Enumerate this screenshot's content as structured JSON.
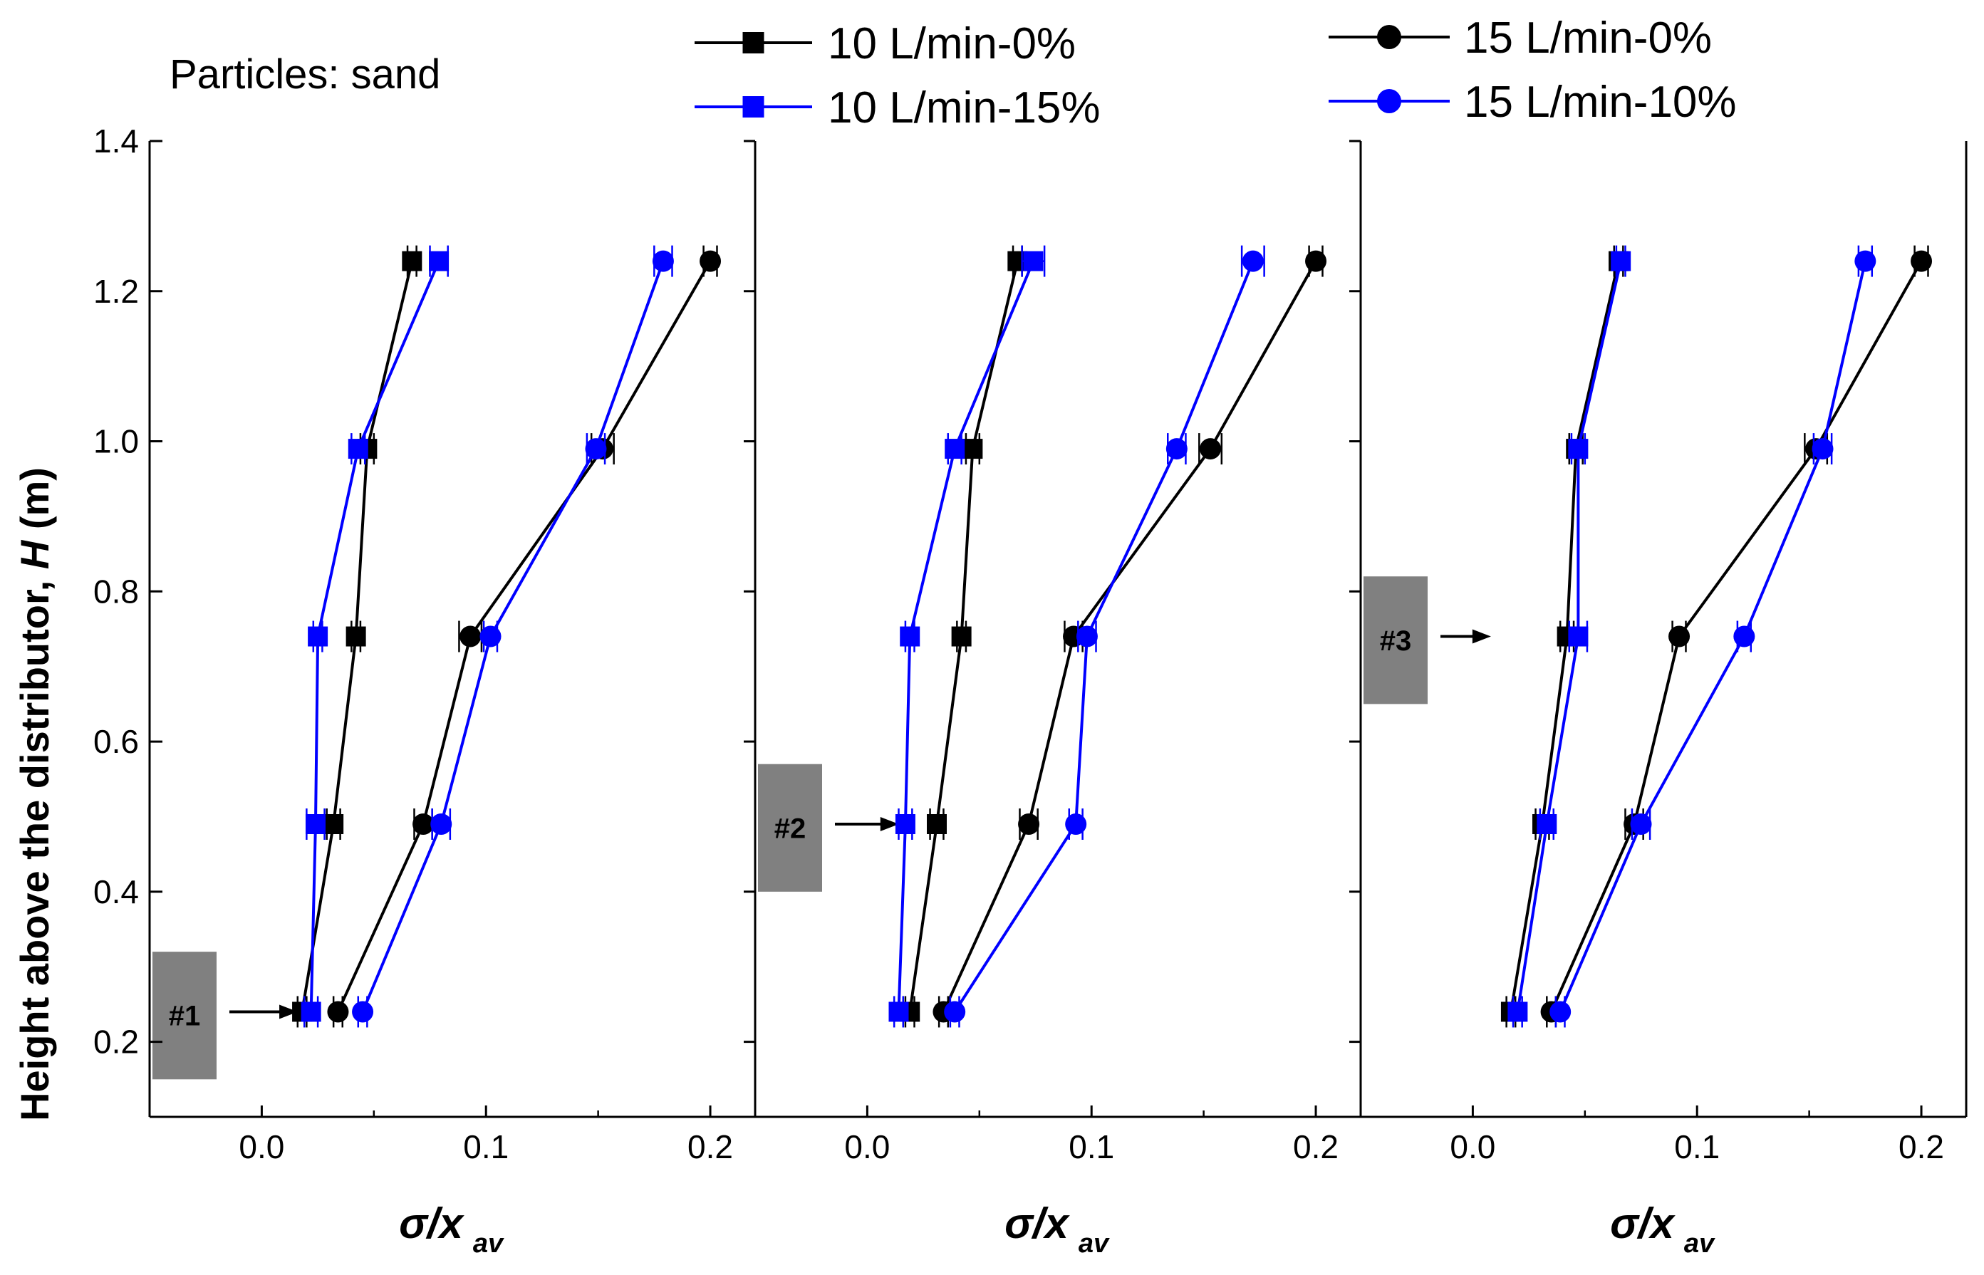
{
  "chart_data": {
    "type": "line",
    "annotation": "Particles: sand",
    "ylabel": "Height above the distributor, H (m)",
    "ylabel_parts": [
      "Height above the distributor, ",
      "H",
      " (m)"
    ],
    "xlabel_main": "σ/x",
    "xlabel_sub": "av",
    "ylim": [
      0.1,
      1.4
    ],
    "yticks": [
      0.2,
      0.4,
      0.6,
      0.8,
      1.0,
      1.2,
      1.4
    ],
    "ytick_labels": [
      "0.2",
      "0.4",
      "0.6",
      "0.8",
      "1.0",
      "1.2",
      "1.4"
    ],
    "xlim": [
      -0.05,
      0.22
    ],
    "xticks": [
      0.0,
      0.1,
      0.2
    ],
    "xtick_labels": [
      "0.0",
      "0.1",
      "0.2"
    ],
    "legend": [
      {
        "label": "10 L/min-0%",
        "color": "#000000",
        "marker": "square"
      },
      {
        "label": "10 L/min-15%",
        "color": "#0000ff",
        "marker": "square"
      },
      {
        "label": "15 L/min-0%",
        "color": "#000000",
        "marker": "circle"
      },
      {
        "label": "15 L/min-10%",
        "color": "#0000ff",
        "marker": "circle"
      }
    ],
    "heights": [
      0.24,
      0.49,
      0.74,
      0.99,
      1.24
    ],
    "panels": [
      {
        "name": "#1",
        "box": {
          "label": "#1",
          "y_range": [
            0.15,
            0.32
          ],
          "arrow_to": [
            0.018,
            0.24
          ]
        },
        "series": [
          {
            "name": "10 L/min-0%",
            "x": [
              0.018,
              0.032,
              0.042,
              0.047,
              0.067
            ],
            "err": [
              0.002,
              0.003,
              0.002,
              0.003,
              0.002
            ]
          },
          {
            "name": "10 L/min-15%",
            "x": [
              0.022,
              0.024,
              0.025,
              0.043,
              0.079
            ],
            "err": [
              0.003,
              0.004,
              0.002,
              0.003,
              0.004
            ]
          },
          {
            "name": "15 L/min-0%",
            "x": [
              0.034,
              0.072,
              0.093,
              0.152,
              0.2
            ],
            "err": [
              0.002,
              0.004,
              0.005,
              0.005,
              0.003
            ]
          },
          {
            "name": "15 L/min-10%",
            "x": [
              0.045,
              0.08,
              0.102,
              0.149,
              0.179
            ],
            "err": [
              0.002,
              0.004,
              0.003,
              0.004,
              0.004
            ]
          }
        ]
      },
      {
        "name": "#2",
        "box": {
          "label": "#2",
          "y_range": [
            0.4,
            0.57
          ],
          "arrow_to": [
            0.016,
            0.49
          ]
        },
        "series": [
          {
            "name": "10 L/min-0%",
            "x": [
              0.019,
              0.031,
              0.042,
              0.047,
              0.067
            ],
            "err": [
              0.002,
              0.003,
              0.002,
              0.003,
              0.002
            ]
          },
          {
            "name": "10 L/min-15%",
            "x": [
              0.014,
              0.017,
              0.019,
              0.039,
              0.074
            ],
            "err": [
              0.002,
              0.003,
              0.002,
              0.003,
              0.005
            ]
          },
          {
            "name": "15 L/min-0%",
            "x": [
              0.034,
              0.072,
              0.092,
              0.153,
              0.2
            ],
            "err": [
              0.002,
              0.004,
              0.004,
              0.005,
              0.003
            ]
          },
          {
            "name": "15 L/min-10%",
            "x": [
              0.039,
              0.093,
              0.098,
              0.138,
              0.172
            ],
            "err": [
              0.002,
              0.003,
              0.004,
              0.004,
              0.005
            ]
          }
        ]
      },
      {
        "name": "#3",
        "box": {
          "label": "#3",
          "y_range": [
            0.65,
            0.82
          ],
          "arrow_to": [
            0.01,
            0.74
          ]
        },
        "series": [
          {
            "name": "10 L/min-0%",
            "x": [
              0.017,
              0.031,
              0.042,
              0.046,
              0.065
            ],
            "err": [
              0.002,
              0.003,
              0.003,
              0.003,
              0.002
            ]
          },
          {
            "name": "10 L/min-15%",
            "x": [
              0.02,
              0.033,
              0.047,
              0.047,
              0.066
            ],
            "err": [
              0.002,
              0.003,
              0.004,
              0.003,
              0.002
            ]
          },
          {
            "name": "15 L/min-0%",
            "x": [
              0.035,
              0.072,
              0.092,
              0.153,
              0.2
            ],
            "err": [
              0.002,
              0.004,
              0.003,
              0.005,
              0.003
            ]
          },
          {
            "name": "15 L/min-10%",
            "x": [
              0.039,
              0.075,
              0.121,
              0.156,
              0.175
            ],
            "err": [
              0.002,
              0.004,
              0.003,
              0.004,
              0.003
            ]
          }
        ]
      }
    ]
  }
}
